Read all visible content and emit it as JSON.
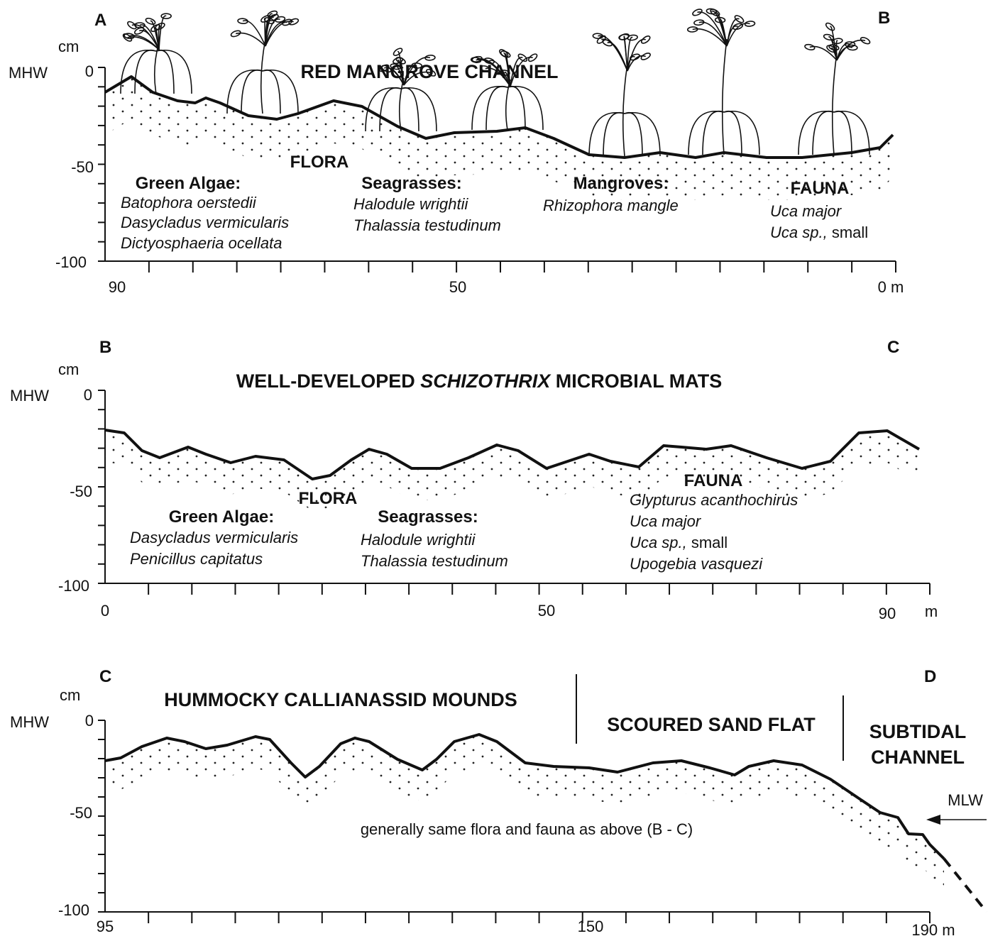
{
  "panels": [
    {
      "corner_left": "A",
      "corner_right": "B",
      "y_unit": "cm",
      "y_ref": "MHW",
      "y_labels": [
        "0",
        "-50",
        "-100"
      ],
      "x_labels": [
        "90",
        "50",
        "0 m"
      ],
      "title": "RED MANGROVE CHANNEL",
      "flora_heading": "FLORA",
      "groups": [
        {
          "heading": "Green Algae:",
          "items": [
            "Batophora oerstedii",
            "Dasycladus vermicularis",
            "Dictyosphaeria ocellata"
          ]
        },
        {
          "heading": "Seagrasses:",
          "items": [
            "Halodule wrightii",
            "Thalassia testudinum"
          ]
        },
        {
          "heading": "Mangroves:",
          "items": [
            "Rhizophora mangle"
          ]
        }
      ],
      "fauna_heading": "FAUNA",
      "fauna": [
        "Uca major",
        {
          "name": "Uca sp.,",
          "note": "small"
        }
      ]
    },
    {
      "corner_left": "B",
      "corner_right": "C",
      "y_unit": "cm",
      "y_ref": "MHW",
      "y_labels": [
        "0",
        "-50",
        "-100"
      ],
      "x_labels": [
        "0",
        "50",
        "90"
      ],
      "x_unit": "m",
      "title_before": "WELL-DEVELOPED",
      "title_italic": "SCHIZOTHRIX",
      "title_after": "MICROBIAL MATS",
      "flora_heading": "FLORA",
      "groups": [
        {
          "heading": "Green Algae:",
          "items": [
            "Dasycladus vermicularis",
            "Penicillus capitatus"
          ]
        },
        {
          "heading": "Seagrasses:",
          "items": [
            "Halodule wrightii",
            "Thalassia testudinum"
          ]
        }
      ],
      "fauna_heading": "FAUNA",
      "fauna": [
        "Glypturus acanthochirus",
        "Uca major",
        {
          "name": "Uca sp.,",
          "note": "small"
        },
        "Upogebia vasquezi"
      ]
    },
    {
      "corner_left": "C",
      "corner_right": "D",
      "y_unit": "cm",
      "y_ref": "MHW",
      "y_labels": [
        "0",
        "-50",
        "-100"
      ],
      "x_labels": [
        "95",
        "150",
        "190 m"
      ],
      "zones": [
        "HUMMOCKY CALLIANASSID MOUNDS",
        "SCOURED SAND FLAT",
        "SUBTIDAL",
        "CHANNEL"
      ],
      "note": "generally same flora and fauna as above (B - C)",
      "marker": "MLW"
    }
  ]
}
